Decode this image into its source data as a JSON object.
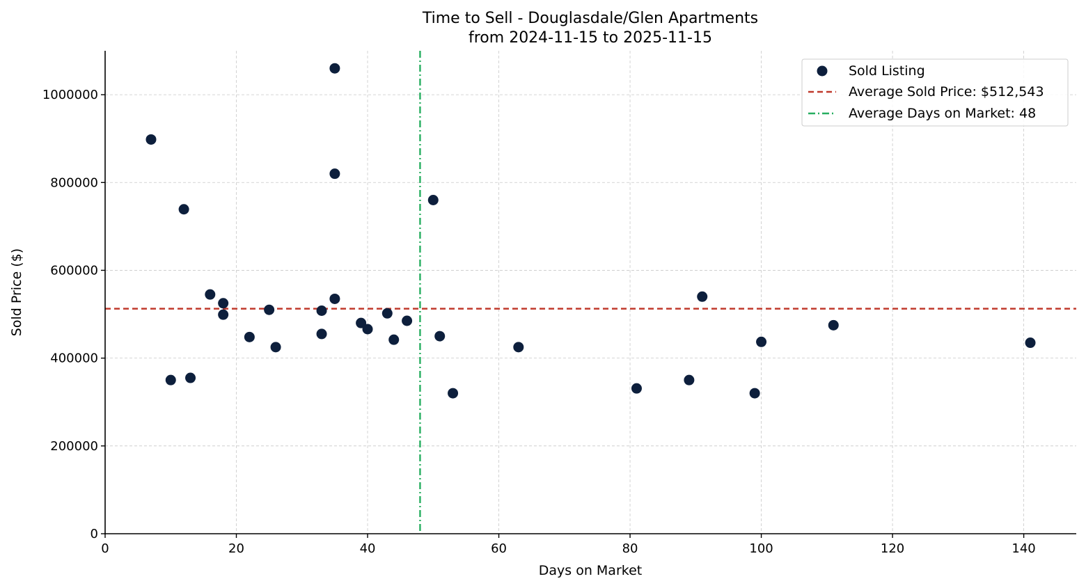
{
  "chart_data": {
    "type": "scatter",
    "title_line1": "Time to Sell - Douglasdale/Glen Apartments",
    "title_line2": "from 2024-11-15 to 2025-11-15",
    "xlabel": "Days on Market",
    "ylabel": "Sold Price ($)",
    "xlim": [
      0,
      148
    ],
    "ylim": [
      0,
      1100000
    ],
    "xticks": [
      0,
      20,
      40,
      60,
      80,
      100,
      120,
      140
    ],
    "yticks": [
      0,
      200000,
      400000,
      600000,
      800000,
      1000000
    ],
    "grid": true,
    "legend_position": "top-right",
    "series": [
      {
        "name": "Sold Listing",
        "color": "#0d1f3c",
        "points": [
          {
            "x": 7,
            "y": 898000
          },
          {
            "x": 10,
            "y": 350000
          },
          {
            "x": 12,
            "y": 739000
          },
          {
            "x": 13,
            "y": 355000
          },
          {
            "x": 16,
            "y": 545000
          },
          {
            "x": 18,
            "y": 525000
          },
          {
            "x": 18,
            "y": 499000
          },
          {
            "x": 22,
            "y": 448000
          },
          {
            "x": 25,
            "y": 510000
          },
          {
            "x": 26,
            "y": 425000
          },
          {
            "x": 33,
            "y": 508000
          },
          {
            "x": 33,
            "y": 455000
          },
          {
            "x": 35,
            "y": 1060000
          },
          {
            "x": 35,
            "y": 820000
          },
          {
            "x": 35,
            "y": 535000
          },
          {
            "x": 39,
            "y": 480000
          },
          {
            "x": 40,
            "y": 466000
          },
          {
            "x": 43,
            "y": 502000
          },
          {
            "x": 44,
            "y": 442000
          },
          {
            "x": 46,
            "y": 485000
          },
          {
            "x": 50,
            "y": 760000
          },
          {
            "x": 51,
            "y": 450000
          },
          {
            "x": 53,
            "y": 320000
          },
          {
            "x": 63,
            "y": 425000
          },
          {
            "x": 81,
            "y": 331000
          },
          {
            "x": 89,
            "y": 350000
          },
          {
            "x": 91,
            "y": 540000
          },
          {
            "x": 99,
            "y": 320000
          },
          {
            "x": 100,
            "y": 437000
          },
          {
            "x": 111,
            "y": 475000
          },
          {
            "x": 141,
            "y": 435000
          }
        ]
      }
    ],
    "reference_lines": {
      "avg_price": {
        "value": 512543,
        "label": "Average Sold Price: $512,543",
        "color": "#c0392b"
      },
      "avg_days": {
        "value": 48,
        "label": "Average Days on Market: 48",
        "color": "#27ae60"
      }
    }
  }
}
